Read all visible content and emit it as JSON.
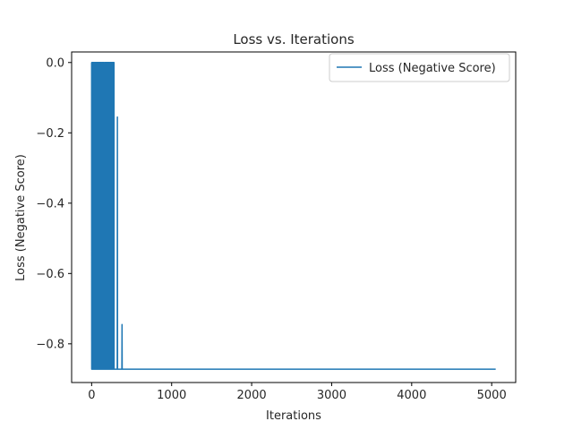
{
  "chart_data": {
    "type": "line",
    "title": "Loss vs. Iterations",
    "xlabel": "Iterations",
    "ylabel": "Loss (Negative Score)",
    "xlim": [
      -250,
      5300
    ],
    "ylim": [
      -0.91,
      0.03
    ],
    "xticks": [
      0,
      1000,
      2000,
      3000,
      4000,
      5000
    ],
    "xtick_labels": [
      "0",
      "1000",
      "2000",
      "3000",
      "4000",
      "5000"
    ],
    "yticks": [
      0.0,
      -0.2,
      -0.4,
      -0.6,
      -0.8
    ],
    "ytick_labels": [
      "0.0",
      "−0.2",
      "−0.4",
      "−0.6",
      "−0.8"
    ],
    "grid": false,
    "legend_position": "upper right",
    "series": [
      {
        "name": "Loss (Negative Score)",
        "color": "#1f77b4",
        "x_range": [
          0,
          5050
        ],
        "oscillation_end_x": 380,
        "floor_value": -0.872,
        "top_value": 0.0,
        "spikes": [
          {
            "x": 322,
            "y": -0.155
          },
          {
            "x": 380,
            "y": -0.745
          }
        ]
      }
    ]
  }
}
